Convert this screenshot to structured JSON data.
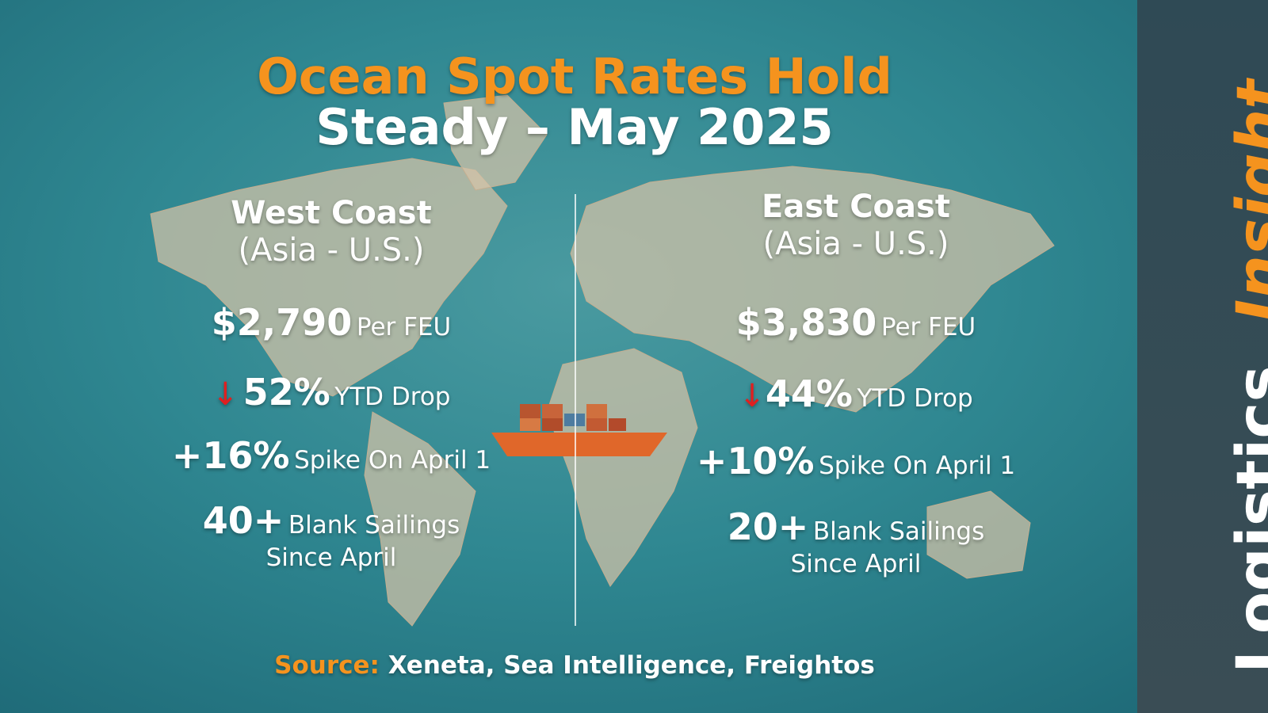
{
  "title": {
    "line1": "Ocean Spot Rates Hold",
    "line2": "Steady – May 2025"
  },
  "columns": [
    {
      "heading": "West Coast",
      "subheading": "(Asia - U.S.)",
      "price": {
        "value": "$2,790",
        "label": "Per FEU"
      },
      "ytd": {
        "value": "52%",
        "label": "YTD Drop"
      },
      "spike": {
        "value": "+16%",
        "label": "Spike On April 1"
      },
      "blank": {
        "value": "40+",
        "label": "Blank Sailings",
        "label2": "Since April"
      }
    },
    {
      "heading": "East Coast",
      "subheading": "(Asia - U.S.)",
      "price": {
        "value": "$3,830",
        "label": "Per FEU"
      },
      "ytd": {
        "value": "44%",
        "label": "YTD Drop"
      },
      "spike": {
        "value": "+10%",
        "label": "Spike On April 1"
      },
      "blank": {
        "value": "20+",
        "label": "Blank Sailings",
        "label2": "Since April"
      }
    }
  ],
  "source": {
    "label": "Source:",
    "text": "Xeneta, Sea Intelligence, Freightos"
  },
  "sidebar": {
    "word1": "Logistics",
    "word2": "Insight"
  }
}
